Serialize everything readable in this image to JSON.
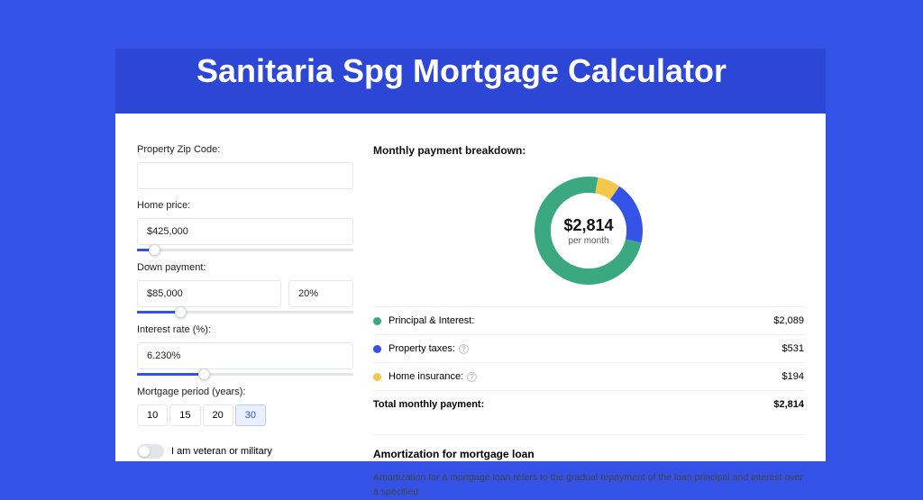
{
  "page": {
    "title": "Sanitaria Spg Mortgage Calculator",
    "background_color": "#3452e5",
    "band_color": "#2c47d5"
  },
  "form": {
    "zip": {
      "label": "Property Zip Code:",
      "value": ""
    },
    "home_price": {
      "label": "Home price:",
      "value": "$425,000",
      "slider_pct": 8
    },
    "down_payment": {
      "label": "Down payment:",
      "amount": "$85,000",
      "percent": "20%",
      "slider_pct": 20
    },
    "interest_rate": {
      "label": "Interest rate (%):",
      "value": "6.230%",
      "slider_pct": 31
    },
    "period": {
      "label": "Mortgage period (years):",
      "options": [
        "10",
        "15",
        "20",
        "30"
      ],
      "selected_index": 3
    },
    "veteran": {
      "label": "I am veteran or military",
      "on": false
    }
  },
  "breakdown": {
    "title": "Monthly payment breakdown:",
    "center_amount": "$2,814",
    "center_sub": "per month",
    "colors": {
      "principal": "#3aa981",
      "taxes": "#3452e5",
      "insurance": "#f3c84a",
      "track": "#eceef2"
    },
    "donut": {
      "size": 120,
      "thickness": 18,
      "segments": [
        {
          "key": "insurance",
          "pct": 6.9
        },
        {
          "key": "taxes",
          "pct": 18.9
        },
        {
          "key": "principal",
          "pct": 74.2
        }
      ]
    },
    "rows": [
      {
        "color_key": "principal",
        "label": "Principal & Interest:",
        "amount": "$2,089",
        "info": false
      },
      {
        "color_key": "taxes",
        "label": "Property taxes:",
        "amount": "$531",
        "info": true
      },
      {
        "color_key": "insurance",
        "label": "Home insurance:",
        "amount": "$194",
        "info": true
      }
    ],
    "total": {
      "label": "Total monthly payment:",
      "amount": "$2,814"
    }
  },
  "amortization": {
    "title": "Amortization for mortgage loan",
    "text": "Amortization for a mortgage loan refers to the gradual repayment of the loan principal and interest over a specified"
  }
}
